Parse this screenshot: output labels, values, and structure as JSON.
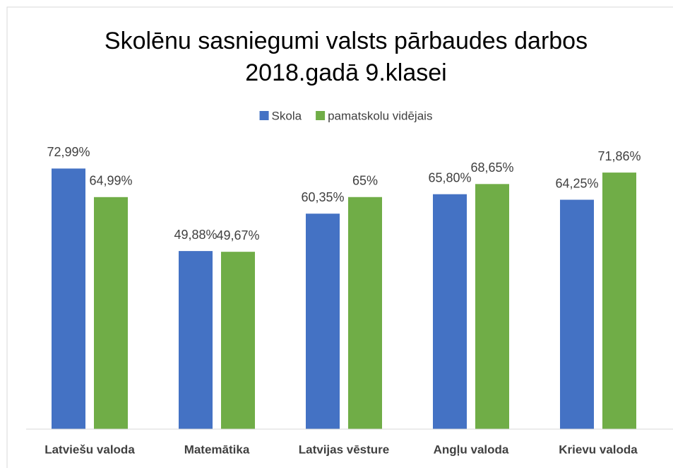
{
  "chart_data": {
    "type": "bar",
    "title": [
      "Skolēnu sasniegumi valsts pārbaudes darbos",
      "2018.gadā 9.klasei"
    ],
    "categories": [
      "Latviešu valoda",
      "Matemātika",
      "Latvijas vēsture",
      "Angļu valoda",
      "Krievu valoda"
    ],
    "series": [
      {
        "name": "Skola",
        "color": "#4472c4",
        "values": [
          72.99,
          49.88,
          60.35,
          65.8,
          64.25
        ],
        "value_labels": [
          "72,99%",
          "49,88%",
          "60,35%",
          "65,80%",
          "64,25%"
        ]
      },
      {
        "name": "pamatskolu vidējais",
        "color": "#70ad47",
        "values": [
          64.99,
          49.67,
          65,
          68.65,
          71.86
        ],
        "value_labels": [
          "64,99%",
          "49,67%",
          "65%",
          "68,65%",
          "71,86%"
        ]
      }
    ],
    "ylim": [
      0,
      80
    ],
    "legend": "top"
  }
}
